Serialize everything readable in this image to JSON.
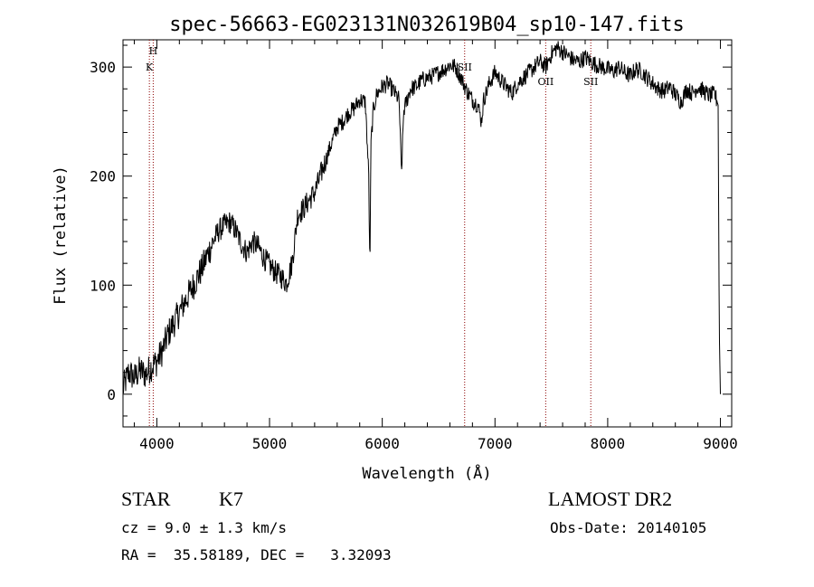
{
  "chart_data": {
    "type": "line",
    "title": "spec-56663-EG023131N032619B04_sp10-147.fits",
    "xlabel": "Wavelength (Å)",
    "ylabel": "Flux (relative)",
    "xlim": [
      3700,
      9100
    ],
    "ylim": [
      -30,
      325
    ],
    "x_ticks": [
      4000,
      5000,
      6000,
      7000,
      8000,
      9000
    ],
    "y_ticks": [
      0,
      100,
      200,
      300
    ],
    "grid": false,
    "series": [
      {
        "x": [
          3700,
          3750,
          3800,
          3850,
          3900,
          3950,
          4000,
          4050,
          4100,
          4150,
          4200,
          4250,
          4300,
          4350,
          4400,
          4450,
          4500,
          4550,
          4600,
          4650,
          4700,
          4750,
          4800,
          4850,
          4900,
          4950,
          5000,
          5050,
          5100,
          5150,
          5200,
          5250,
          5300,
          5350,
          5400,
          5450,
          5500,
          5550,
          5600,
          5650,
          5700,
          5750,
          5800,
          5850,
          5880,
          5890,
          5900,
          5920,
          5950,
          6000,
          6050,
          6100,
          6150,
          6170,
          6190,
          6250,
          6300,
          6350,
          6400,
          6450,
          6500,
          6550,
          6600,
          6650,
          6700,
          6750,
          6800,
          6850,
          6880,
          6900,
          6950,
          7000,
          7050,
          7100,
          7150,
          7200,
          7250,
          7300,
          7350,
          7400,
          7450,
          7500,
          7550,
          7600,
          7650,
          7700,
          7750,
          7800,
          7850,
          7900,
          7950,
          8000,
          8050,
          8100,
          8150,
          8200,
          8250,
          8300,
          8350,
          8400,
          8450,
          8500,
          8550,
          8600,
          8650,
          8700,
          8750,
          8800,
          8850,
          8900,
          8950,
          8980,
          8990,
          9000
        ],
        "y": [
          5,
          20,
          15,
          22,
          18,
          25,
          30,
          40,
          55,
          65,
          75,
          85,
          95,
          105,
          115,
          128,
          140,
          150,
          155,
          158,
          150,
          138,
          130,
          140,
          135,
          125,
          118,
          112,
          108,
          102,
          120,
          165,
          170,
          178,
          185,
          200,
          215,
          230,
          245,
          250,
          258,
          262,
          270,
          268,
          200,
          110,
          230,
          260,
          275,
          282,
          285,
          278,
          270,
          200,
          260,
          280,
          282,
          288,
          290,
          292,
          295,
          298,
          302,
          300,
          290,
          278,
          270,
          265,
          250,
          270,
          285,
          295,
          288,
          282,
          276,
          285,
          290,
          295,
          300,
          305,
          300,
          312,
          318,
          314,
          310,
          306,
          305,
          309,
          305,
          302,
          300,
          298,
          296,
          300,
          295,
          292,
          298,
          296,
          290,
          285,
          280,
          278,
          282,
          275,
          268,
          280,
          276,
          282,
          278,
          274,
          275,
          265,
          60,
          0
        ]
      }
    ],
    "line_markers": [
      {
        "wavelength": 3934,
        "label": "K",
        "color": "#8b0000"
      },
      {
        "wavelength": 3968,
        "label": "H",
        "color": "#8b0000"
      },
      {
        "wavelength": 6731,
        "label": "SII",
        "color": "#8b0000"
      },
      {
        "wavelength": 7450,
        "label": "OII",
        "color": "#8b0000"
      },
      {
        "wavelength": 7850,
        "label": "SII",
        "color": "#8b0000"
      }
    ]
  },
  "info": {
    "class": "STAR",
    "subclass": "K7",
    "survey": "LAMOST DR2",
    "cz": "cz = 9.0 ± 1.3 km/s",
    "obs_date": "Obs-Date: 20140105",
    "radec": "RA =  35.58189, DEC =   3.32093"
  }
}
